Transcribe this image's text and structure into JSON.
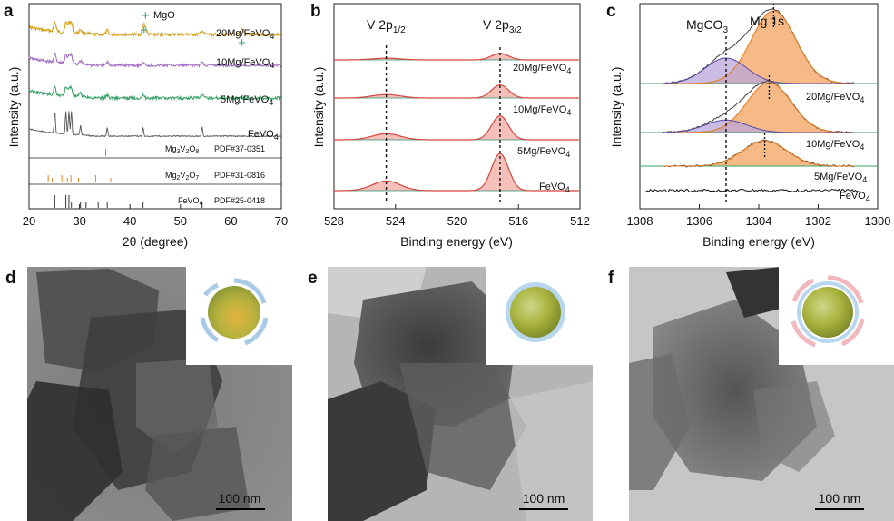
{
  "panel_labels": [
    "a",
    "b",
    "c",
    "d",
    "e",
    "f"
  ],
  "colors": {
    "yellow": "#d4a017",
    "purple": "#a472c4",
    "green": "#3aa36a",
    "gray": "#555555",
    "orange": "#e67e22",
    "red": "#d6453d",
    "fill_red": "#f3b0a8",
    "fill_orange": "#f6b27a",
    "fill_purple": "#b9a5d9",
    "fill_green": "#9bd4b2",
    "line_black": "#222222",
    "bg_tem": "#9a9a9a"
  },
  "chart_data": [
    {
      "type": "line",
      "panel": "a",
      "xlabel": "2θ (degree)",
      "ylabel": "Intensity (a.u.)",
      "xlim": [
        20,
        70
      ],
      "xticks": [
        20,
        30,
        40,
        50,
        60,
        70
      ],
      "legend_marker": "+ MgO",
      "series": [
        {
          "name": "20Mg/FeVO4",
          "label_main": "20Mg/FeVO",
          "label_sub": "4"
        },
        {
          "name": "10Mg/FeVO4",
          "label_main": "10Mg/FeVO",
          "label_sub": "4"
        },
        {
          "name": "5Mg/FeVO4",
          "label_main": "5Mg/FeVO",
          "label_sub": "4"
        },
        {
          "name": "FeVO4",
          "label_main": "FeVO",
          "label_sub": "4"
        }
      ],
      "references": [
        {
          "name": "Mg3V2O8",
          "pdf": "PDF#37-0351",
          "peaks": [
            35.2
          ]
        },
        {
          "name": "Mg2V2O7",
          "pdf": "PDF#31-0816",
          "peaks": [
            23.8,
            24.6,
            26.5,
            27.6,
            28.3,
            29.8,
            33.2,
            36.2
          ]
        },
        {
          "name": "FeVO4",
          "pdf": "PDF#25-0418",
          "peaks": [
            25.1,
            27.3,
            27.9,
            28.4,
            30.2,
            31.3,
            33.7,
            35.5,
            42.6,
            54.3
          ]
        }
      ],
      "mgo_peaks": [
        42.9,
        62.3
      ]
    },
    {
      "type": "line",
      "panel": "b",
      "xlabel": "Binding energy (eV)",
      "ylabel": "Intensity (a.u.)",
      "xlim": [
        528,
        512
      ],
      "xticks": [
        528,
        524,
        520,
        516,
        512
      ],
      "peaks": [
        {
          "label": "V 2p",
          "sub": "1/2",
          "position": 524.6
        },
        {
          "label": "V 2p",
          "sub": "3/2",
          "position": 517.2
        }
      ],
      "series": [
        {
          "name": "20Mg/FeVO4",
          "label_main": "20Mg/FeVO",
          "label_sub": "4",
          "amp_main": 0.15,
          "amp_sat": 0.04
        },
        {
          "name": "10Mg/FeVO4",
          "label_main": "10Mg/FeVO",
          "label_sub": "4",
          "amp_main": 0.3,
          "amp_sat": 0.08
        },
        {
          "name": "5Mg/FeVO4",
          "label_main": "5Mg/FeVO",
          "label_sub": "4",
          "amp_main": 0.55,
          "amp_sat": 0.14
        },
        {
          "name": "FeVO4",
          "label_main": "FeVO",
          "label_sub": "4",
          "amp_main": 0.85,
          "amp_sat": 0.22
        }
      ]
    },
    {
      "type": "line",
      "panel": "c",
      "xlabel": "Binding energy (eV)",
      "ylabel": "Intensity (a.u.)",
      "xlim": [
        1308,
        1300
      ],
      "xticks": [
        1308,
        1306,
        1304,
        1302,
        1300
      ],
      "peaks": [
        {
          "label": "MgCO",
          "sub": "3",
          "position": 1305.1
        },
        {
          "label": "Mg 1s",
          "sub": "",
          "position": 1303.6
        }
      ],
      "series": [
        {
          "name": "20Mg/FeVO4",
          "label_main": "20Mg/FeVO",
          "label_sub": "4",
          "amp_main": 1.0,
          "amp_co3": 0.35,
          "center": 1303.5
        },
        {
          "name": "10Mg/FeVO4",
          "label_main": "10Mg/FeVO",
          "label_sub": "4",
          "amp_main": 0.7,
          "amp_co3": 0.25,
          "center": 1303.65
        },
        {
          "name": "5Mg/FeVO4",
          "label_main": "5Mg/FeVO",
          "label_sub": "4",
          "amp_main": 0.45,
          "amp_co3": 0.0,
          "center": 1303.8
        },
        {
          "name": "FeVO4",
          "label_main": "FeVO",
          "label_sub": "4",
          "amp_main": 0.0,
          "amp_co3": 0.0,
          "center": 1303.8
        }
      ]
    }
  ],
  "tem": [
    {
      "panel": "d",
      "scale": "100 nm",
      "coating": "partial-blue"
    },
    {
      "panel": "e",
      "scale": "100 nm",
      "coating": "full-blue"
    },
    {
      "panel": "f",
      "scale": "100 nm",
      "coating": "blue-pink"
    }
  ]
}
